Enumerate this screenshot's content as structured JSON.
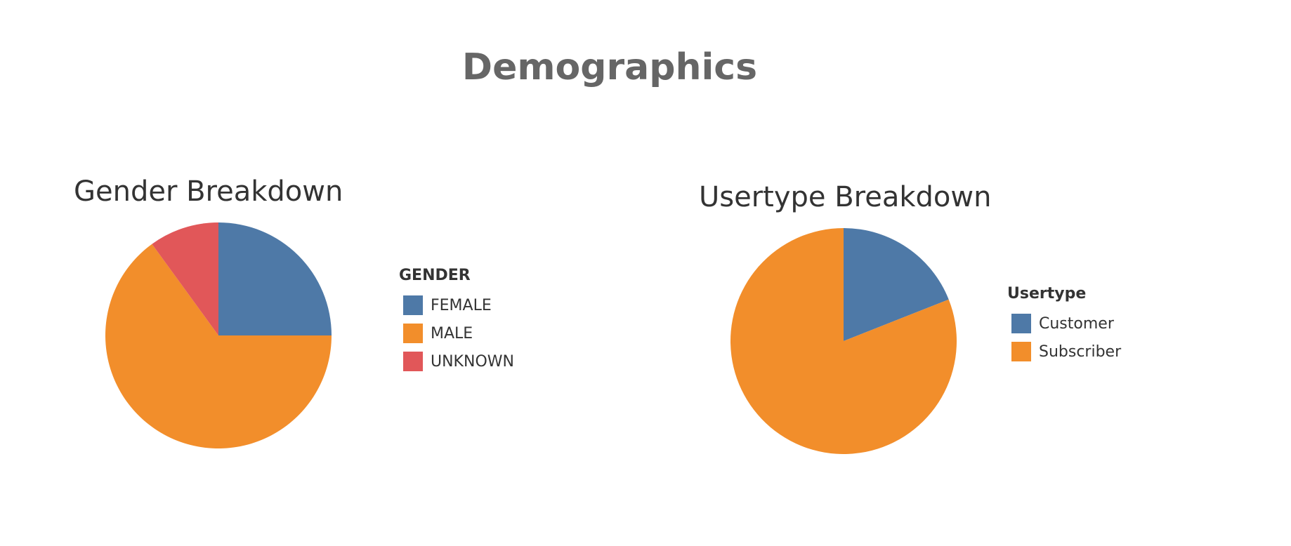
{
  "dashboard": {
    "title": "Demographics"
  },
  "colors": {
    "blue": "#4e79a7",
    "orange": "#f28e2b",
    "red": "#e15759"
  },
  "chart_data": [
    {
      "type": "pie",
      "title": "Gender Breakdown",
      "legend_title": "GENDER",
      "legend_position": "right",
      "categories": [
        "FEMALE",
        "MALE",
        "UNKNOWN"
      ],
      "values": [
        25,
        65,
        10
      ],
      "colors": [
        "#4e79a7",
        "#f28e2b",
        "#e15759"
      ]
    },
    {
      "type": "pie",
      "title": "Usertype Breakdown",
      "legend_title": "Usertype",
      "legend_position": "right",
      "categories": [
        "Customer",
        "Subscriber"
      ],
      "values": [
        19,
        81
      ],
      "colors": [
        "#4e79a7",
        "#f28e2b"
      ]
    }
  ]
}
